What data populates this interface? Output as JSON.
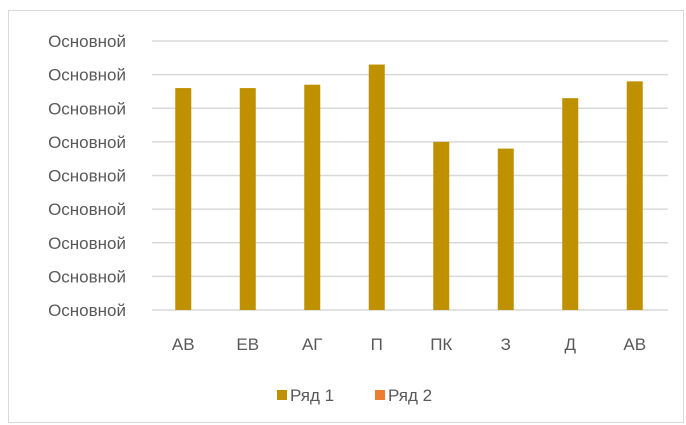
{
  "chart_data": {
    "type": "bar",
    "categories": [
      "АВ",
      "ЕВ",
      "АГ",
      "П",
      "ПК",
      "З",
      "Д",
      "АВ"
    ],
    "series": [
      {
        "name": "Ряд 1",
        "values": [
          6.6,
          6.6,
          6.7,
          7.3,
          5.0,
          4.8,
          6.3,
          6.8
        ],
        "color": "#bf9000"
      },
      {
        "name": "Ряд 2",
        "values": [
          0,
          0,
          0,
          0,
          0,
          0,
          0,
          0
        ],
        "color": "#ed7d31"
      }
    ],
    "y_tick_labels": [
      "Основной",
      "Основной",
      "Основной",
      "Основной",
      "Основной",
      "Основной",
      "Основной",
      "Основной",
      "Основной"
    ],
    "ylim": [
      0,
      8
    ],
    "grid": true,
    "gridline_color": "#d9d9d9",
    "legend_position": "bottom"
  }
}
